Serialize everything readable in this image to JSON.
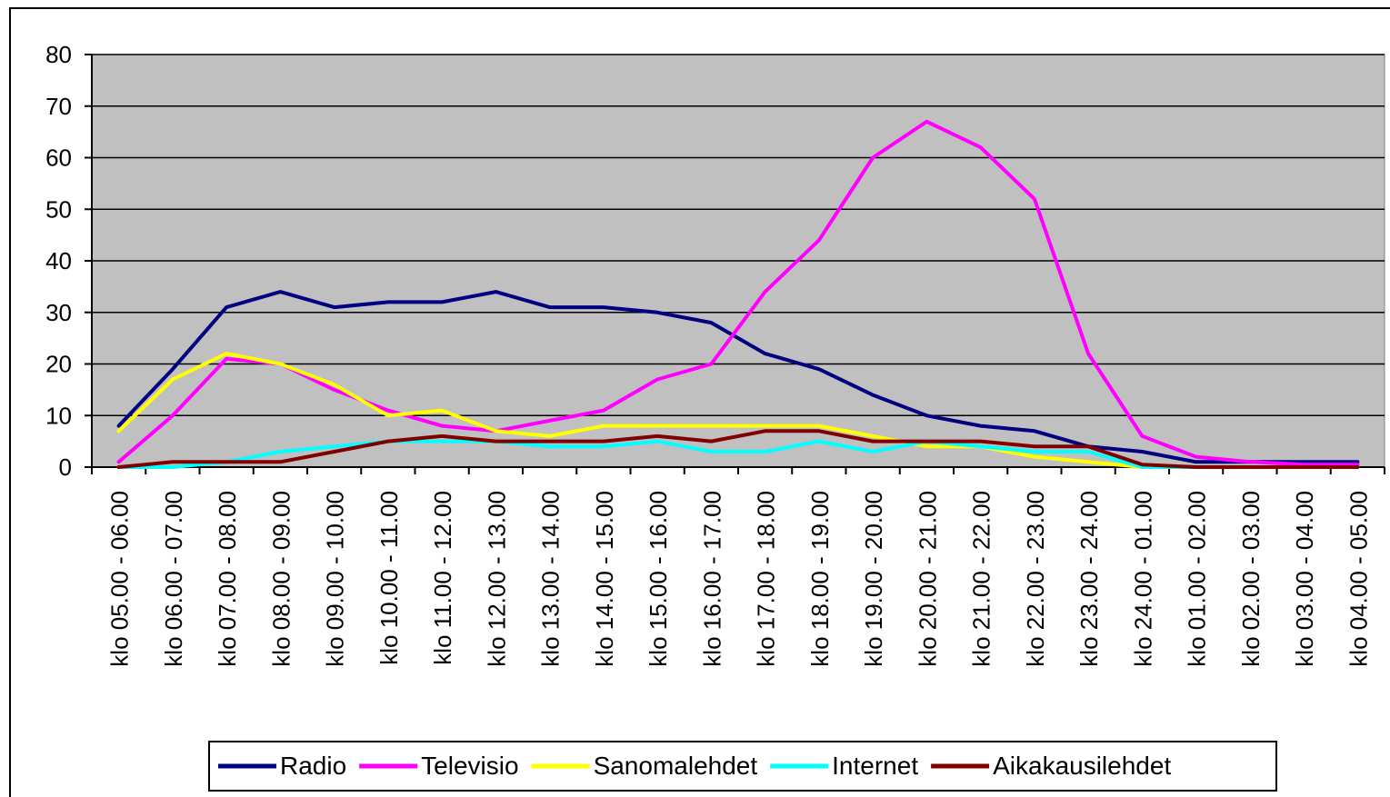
{
  "chart_data": {
    "type": "line",
    "title": "",
    "xlabel": "",
    "ylabel": "",
    "ylim": [
      0,
      80
    ],
    "yticks": [
      "0",
      "10",
      "20",
      "30",
      "40",
      "50",
      "60",
      "70",
      "80"
    ],
    "grid": true,
    "legend_position": "bottom",
    "plot_background": "#c0c0c0",
    "categories": [
      "klo 05.00 - 06.00",
      "klo 06.00 - 07.00",
      "klo 07.00 - 08.00",
      "klo 08.00 - 09.00",
      "klo 09.00 - 10.00",
      "klo 10.00 - 11.00",
      "klo 11.00 - 12.00",
      "klo 12.00 - 13.00",
      "klo 13.00 - 14.00",
      "klo 14.00 - 15.00",
      "klo 15.00 - 16.00",
      "klo 16.00 - 17.00",
      "klo 17.00 - 18.00",
      "klo 18.00 - 19.00",
      "klo 19.00 - 20.00",
      "klo 20.00 - 21.00",
      "klo 21.00 - 22.00",
      "klo 22.00 - 23.00",
      "klo 23.00 - 24.00",
      "klo 24.00 - 01.00",
      "klo 01.00 - 02.00",
      "klo 02.00 - 03.00",
      "klo 03.00 - 04.00",
      "klo 04.00 - 05.00"
    ],
    "series": [
      {
        "name": "Radio",
        "color": "#000080",
        "values": [
          8,
          19,
          31,
          34,
          31,
          32,
          32,
          34,
          31,
          31,
          30,
          28,
          22,
          19,
          14,
          10,
          8,
          7,
          4,
          3,
          1,
          1,
          1,
          1
        ]
      },
      {
        "name": "Televisio",
        "color": "#ff00ff",
        "values": [
          1,
          10,
          21,
          20,
          15,
          11,
          8,
          7,
          9,
          11,
          17,
          20,
          34,
          44,
          60,
          67,
          62,
          52,
          22,
          6,
          2,
          1,
          0.5,
          0.5
        ]
      },
      {
        "name": "Sanomalehdet",
        "color": "#ffff00",
        "values": [
          7,
          17,
          22,
          20,
          16,
          10,
          11,
          7,
          6,
          8,
          8,
          8,
          8,
          8,
          6,
          4,
          4,
          2,
          1,
          0,
          0,
          0,
          0,
          0
        ]
      },
      {
        "name": "Internet",
        "color": "#00ffff",
        "values": [
          0,
          0,
          1,
          3,
          4,
          5,
          5,
          5,
          4,
          4,
          5,
          3,
          3,
          5,
          3,
          5,
          4,
          3,
          3,
          0,
          0,
          0,
          0,
          0
        ]
      },
      {
        "name": "Aikakausilehdet",
        "color": "#800000",
        "values": [
          0,
          1,
          1,
          1,
          3,
          5,
          6,
          5,
          5,
          5,
          6,
          5,
          7,
          7,
          5,
          5,
          5,
          4,
          4,
          0.5,
          0,
          0,
          0,
          0
        ]
      }
    ]
  }
}
